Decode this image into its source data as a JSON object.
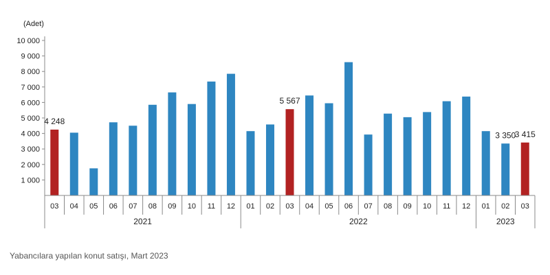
{
  "chart_data": {
    "type": "bar",
    "unit_label": "(Adet)",
    "ylim": [
      0,
      10000
    ],
    "y_ticks": [
      "1 000",
      "2 000",
      "3 000",
      "4 000",
      "5 000",
      "6 000",
      "7 000",
      "8 000",
      "9 000",
      "10 000"
    ],
    "y_tick_values": [
      1000,
      2000,
      3000,
      4000,
      5000,
      6000,
      7000,
      8000,
      9000,
      10000
    ],
    "categories": [
      "03",
      "04",
      "05",
      "06",
      "07",
      "08",
      "09",
      "10",
      "11",
      "12",
      "01",
      "02",
      "03",
      "04",
      "05",
      "06",
      "07",
      "08",
      "09",
      "10",
      "11",
      "12",
      "01",
      "02",
      "03"
    ],
    "values": [
      4248,
      4050,
      1750,
      4720,
      4500,
      5850,
      6650,
      5900,
      7350,
      7850,
      4150,
      4580,
      5567,
      6450,
      5950,
      8600,
      3930,
      5280,
      5050,
      5380,
      6080,
      6380,
      4150,
      3350,
      3415
    ],
    "highlight": [
      true,
      false,
      false,
      false,
      false,
      false,
      false,
      false,
      false,
      false,
      false,
      false,
      true,
      false,
      false,
      false,
      false,
      false,
      false,
      false,
      false,
      false,
      false,
      false,
      true
    ],
    "data_labels": {
      "0": "4 248",
      "12": "5 567",
      "23": "3 350",
      "24": "3 415"
    },
    "years": [
      {
        "label": "2021",
        "start": 0,
        "end": 9
      },
      {
        "label": "2022",
        "start": 10,
        "end": 21
      },
      {
        "label": "2023",
        "start": 22,
        "end": 24
      }
    ],
    "colors": {
      "normal": "#2e86c1",
      "highlight": "#b22222"
    },
    "grid": false
  },
  "caption": "Yabancılara yapılan konut satışı, Mart 2023"
}
